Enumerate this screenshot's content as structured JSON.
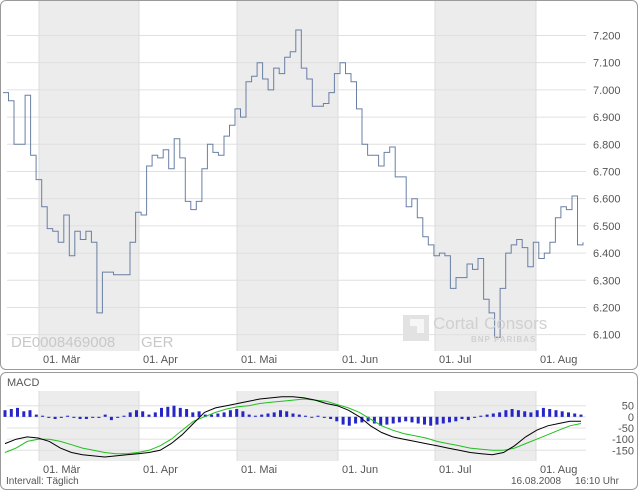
{
  "chart_data": [
    {
      "type": "line",
      "identifier": "DE0008469008",
      "exchange": "GER",
      "ylim": [
        6040,
        7290
      ],
      "y_ticks": [
        "7.200",
        "7.100",
        "7.000",
        "6.900",
        "6.800",
        "6.700",
        "6.600",
        "6.500",
        "6.400",
        "6.300",
        "6.200",
        "6.100"
      ],
      "x_tick_labels": [
        "01. Mär",
        "01. Apr",
        "01. Mai",
        "01. Jun",
        "01. Jul",
        "01. Aug"
      ],
      "shaded_months": [
        "Mär",
        "Mai",
        "Jul"
      ],
      "grid": true,
      "line_color": "#6a7fa4",
      "series": [
        {
          "values": [
            6990,
            6960,
            6800,
            6800,
            6980,
            6760,
            6670,
            6570,
            6490,
            6480,
            6440,
            6540,
            6390,
            6480,
            6450,
            6480,
            6440,
            6180,
            6330,
            6330,
            6320,
            6320,
            6320,
            6440,
            6550,
            6540,
            6720,
            6760,
            6750,
            6780,
            6710,
            6820,
            6750,
            6590,
            6560,
            6590,
            6710,
            6800,
            6770,
            6760,
            6830,
            6870,
            6930,
            6900,
            7030,
            7050,
            7100,
            7040,
            7000,
            7080,
            7060,
            7120,
            7140,
            7220,
            7080,
            7040,
            6940,
            6940,
            6950,
            6990,
            7060,
            7100,
            7060,
            7030,
            6930,
            6800,
            6760,
            6760,
            6720,
            6770,
            6790,
            6680,
            6680,
            6570,
            6600,
            6530,
            6460,
            6430,
            6390,
            6400,
            6390,
            6270,
            6310,
            6310,
            6360,
            6340,
            6380,
            6230,
            6180,
            6090,
            6270,
            6400,
            6430,
            6450,
            6420,
            6350,
            6440,
            6380,
            6400,
            6440,
            6530,
            6570,
            6560,
            6610,
            6430,
            6440
          ]
        }
      ]
    },
    {
      "type": "bar",
      "title": "MACD",
      "y_ticks": [
        "50",
        "0",
        "-50",
        "-100",
        "-150"
      ],
      "ylim": [
        -180,
        80
      ],
      "x_tick_labels": [
        "01. Mär",
        "01. Apr",
        "01. Mai",
        "01. Jun",
        "01. Jul",
        "01. Aug"
      ],
      "series": [
        {
          "name": "histogram",
          "color": "#2626c8",
          "values": [
            30,
            35,
            40,
            25,
            30,
            10,
            5,
            -5,
            -10,
            -5,
            5,
            -5,
            -10,
            -10,
            -5,
            -5,
            10,
            -15,
            -5,
            5,
            20,
            30,
            25,
            10,
            20,
            40,
            45,
            50,
            40,
            35,
            20,
            25,
            10,
            10,
            15,
            20,
            30,
            35,
            25,
            10,
            5,
            10,
            15,
            20,
            30,
            25,
            15,
            10,
            5,
            0,
            5,
            -5,
            -10,
            -20,
            -35,
            -40,
            -30,
            -25,
            -20,
            -30,
            -40,
            -35,
            -30,
            -25,
            -20,
            -25,
            -30,
            -35,
            -40,
            -35,
            -30,
            -25,
            -20,
            -10,
            -15,
            -5,
            5,
            10,
            15,
            20,
            30,
            35,
            30,
            25,
            20,
            30,
            40,
            35,
            30,
            25,
            20,
            15,
            10
          ]
        },
        {
          "name": "macd",
          "color": "#000000",
          "values": [
            -120,
            -100,
            -90,
            -95,
            -110,
            -140,
            -160,
            -170,
            -175,
            -180,
            -175,
            -170,
            -165,
            -160,
            -150,
            -120,
            -80,
            -30,
            20,
            40,
            50,
            60,
            70,
            80,
            85,
            90,
            90,
            85,
            75,
            60,
            50,
            30,
            0,
            -40,
            -70,
            -90,
            -100,
            -110,
            -120,
            -130,
            -140,
            -150,
            -160,
            -165,
            -170,
            -160,
            -130,
            -90,
            -60,
            -40,
            -30,
            -20,
            -20
          ]
        },
        {
          "name": "signal",
          "color": "#1fc01f",
          "values": [
            -160,
            -140,
            -110,
            -100,
            -100,
            -110,
            -125,
            -140,
            -150,
            -160,
            -165,
            -165,
            -160,
            -150,
            -130,
            -100,
            -60,
            -20,
            0,
            20,
            35,
            45,
            50,
            60,
            65,
            70,
            75,
            80,
            75,
            70,
            55,
            40,
            20,
            -10,
            -40,
            -60,
            -75,
            -85,
            -95,
            -110,
            -120,
            -130,
            -140,
            -145,
            -150,
            -150,
            -140,
            -120,
            -100,
            -80,
            -60,
            -40,
            -30
          ]
        }
      ]
    }
  ],
  "branding": {
    "name": "CortalConsors",
    "name_part1": "Cortal",
    "name_part2": "Consors",
    "sub": "BNP PARIBAS"
  },
  "footer": {
    "interval": "Intervall: Täglich",
    "date": "16.08.2008",
    "time": "16:10 Uhr"
  }
}
